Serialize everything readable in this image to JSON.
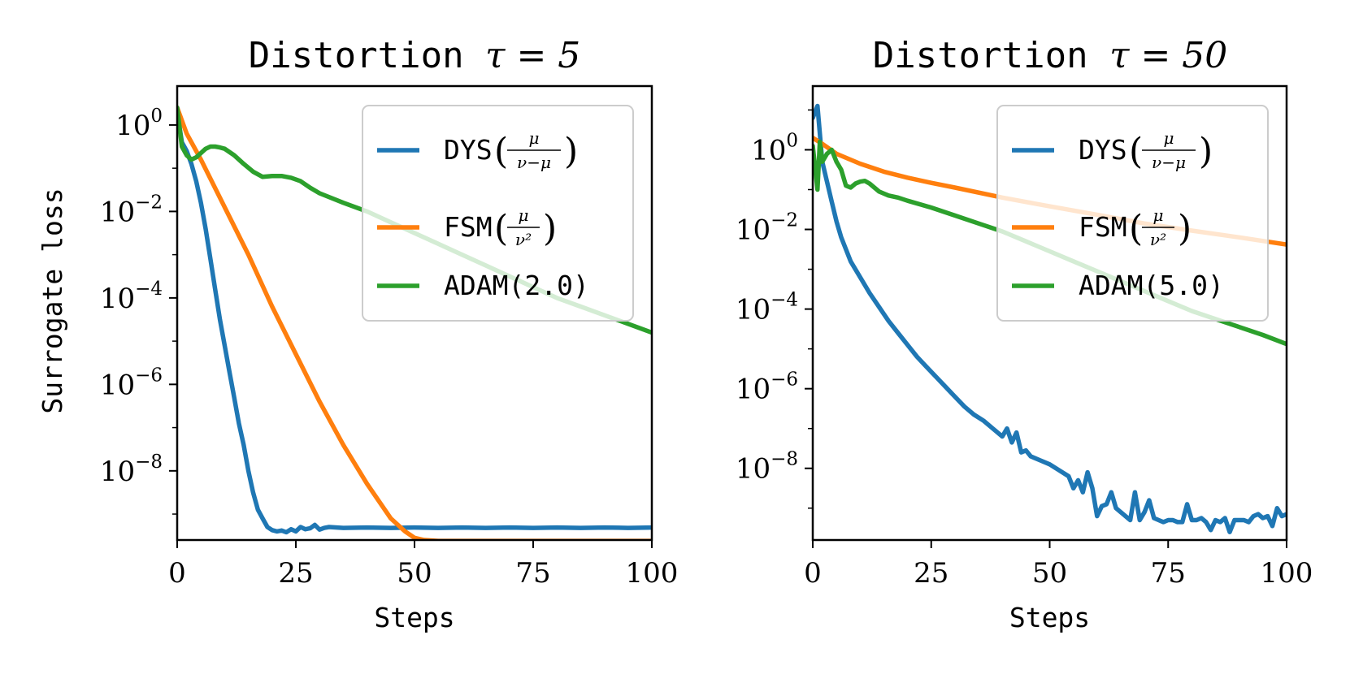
{
  "chart_data": [
    {
      "type": "line",
      "title": "Distortion",
      "title_math": "τ = 5",
      "xlabel": "Steps",
      "ylabel": "Surrogate loss",
      "xlim": [
        0,
        100
      ],
      "ylim_log10": [
        -9.6,
        0.9
      ],
      "yscale": "log",
      "x_ticks": [
        "0",
        "25",
        "50",
        "75",
        "100"
      ],
      "y_ticks": [
        {
          "base": "10",
          "exp": "0"
        },
        {
          "base": "10",
          "exp": "−2"
        },
        {
          "base": "10",
          "exp": "−4"
        },
        {
          "base": "10",
          "exp": "−6"
        },
        {
          "base": "10",
          "exp": "−8"
        }
      ],
      "legend_position": "upper right",
      "legend": [
        {
          "name": "DYS",
          "math": "μ / (ν−μ)",
          "color": "#1f77b4"
        },
        {
          "name": "FSM",
          "math": "μ / ν²",
          "color": "#ff7f0e"
        },
        {
          "name": "ADAM(2.0)",
          "math": "",
          "color": "#2ca02c"
        }
      ],
      "series": [
        {
          "name": "DYS",
          "color": "#1f77b4",
          "x": [
            0,
            1,
            2,
            3,
            4,
            5,
            6,
            7,
            8,
            9,
            10,
            11,
            12,
            13,
            14,
            15,
            16,
            17,
            18,
            19,
            20,
            21,
            22,
            23,
            24,
            25,
            26,
            27,
            28,
            29,
            30,
            31,
            32,
            35,
            40,
            45,
            50,
            55,
            60,
            65,
            70,
            75,
            80,
            85,
            90,
            95,
            100
          ],
          "log10_y": [
            0.3,
            -0.4,
            -0.6,
            -0.9,
            -1.3,
            -1.8,
            -2.4,
            -3.1,
            -3.8,
            -4.5,
            -5.1,
            -5.7,
            -6.3,
            -6.9,
            -7.4,
            -8.0,
            -8.5,
            -8.9,
            -9.1,
            -9.3,
            -9.37,
            -9.4,
            -9.38,
            -9.42,
            -9.35,
            -9.4,
            -9.3,
            -9.35,
            -9.33,
            -9.25,
            -9.36,
            -9.32,
            -9.3,
            -9.32,
            -9.31,
            -9.32,
            -9.31,
            -9.32,
            -9.31,
            -9.32,
            -9.31,
            -9.32,
            -9.31,
            -9.32,
            -9.31,
            -9.32,
            -9.31
          ]
        },
        {
          "name": "FSM",
          "color": "#ff7f0e",
          "x": [
            0,
            2,
            5,
            10,
            15,
            20,
            25,
            30,
            35,
            40,
            45,
            48,
            50,
            52,
            55,
            60,
            70,
            80,
            90,
            100
          ],
          "log10_y": [
            0.4,
            -0.2,
            -0.8,
            -1.9,
            -3.0,
            -4.2,
            -5.3,
            -6.4,
            -7.4,
            -8.3,
            -9.1,
            -9.4,
            -9.55,
            -9.6,
            -9.62,
            -9.62,
            -9.62,
            -9.62,
            -9.62,
            -9.62
          ]
        },
        {
          "name": "ADAM(2.0)",
          "color": "#2ca02c",
          "x": [
            0,
            1,
            2,
            3,
            4,
            5,
            6,
            7,
            8,
            9,
            10,
            12,
            14,
            16,
            18,
            20,
            22,
            24,
            26,
            28,
            30,
            35,
            40,
            45,
            50,
            55,
            60,
            65,
            70,
            75,
            80,
            85,
            90,
            95,
            100
          ],
          "log10_y": [
            0.4,
            -0.5,
            -0.7,
            -0.8,
            -0.75,
            -0.65,
            -0.55,
            -0.5,
            -0.5,
            -0.52,
            -0.55,
            -0.7,
            -0.9,
            -1.08,
            -1.2,
            -1.18,
            -1.18,
            -1.22,
            -1.3,
            -1.45,
            -1.58,
            -1.8,
            -2.0,
            -2.25,
            -2.5,
            -2.75,
            -3.0,
            -3.25,
            -3.5,
            -3.75,
            -4.0,
            -4.2,
            -4.4,
            -4.6,
            -4.8
          ]
        }
      ]
    },
    {
      "type": "line",
      "title": "Distortion",
      "title_math": "τ = 50",
      "xlabel": "Steps",
      "ylabel": "",
      "xlim": [
        0,
        100
      ],
      "ylim_log10": [
        -9.8,
        1.6
      ],
      "yscale": "log",
      "x_ticks": [
        "0",
        "25",
        "50",
        "75",
        "100"
      ],
      "y_ticks": [
        {
          "base": "10",
          "exp": "0"
        },
        {
          "base": "10",
          "exp": "−2"
        },
        {
          "base": "10",
          "exp": "−4"
        },
        {
          "base": "10",
          "exp": "−6"
        },
        {
          "base": "10",
          "exp": "−8"
        }
      ],
      "legend_position": "upper right",
      "legend": [
        {
          "name": "DYS",
          "math": "μ / (ν−μ)",
          "color": "#1f77b4"
        },
        {
          "name": "FSM",
          "math": "μ / ν²",
          "color": "#ff7f0e"
        },
        {
          "name": "ADAM(5.0)",
          "math": "",
          "color": "#2ca02c"
        }
      ],
      "series": [
        {
          "name": "DYS",
          "color": "#1f77b4",
          "x": [
            0,
            1,
            2,
            3,
            4,
            5,
            6,
            7,
            8,
            10,
            12,
            14,
            16,
            18,
            20,
            22,
            24,
            26,
            28,
            30,
            32,
            34,
            36,
            38,
            40,
            41,
            42,
            43,
            44,
            45,
            46,
            48,
            50,
            52,
            54,
            55,
            56,
            57,
            58,
            59,
            60,
            61,
            62,
            63,
            64,
            65,
            66,
            67,
            68,
            69,
            70,
            71,
            72,
            73,
            74,
            75,
            76,
            77,
            78,
            79,
            80,
            81,
            82,
            83,
            84,
            85,
            86,
            87,
            88,
            89,
            90,
            91,
            92,
            93,
            94,
            95,
            96,
            97,
            98,
            99,
            100
          ],
          "log10_y": [
            0.8,
            1.1,
            -0.3,
            -0.8,
            -1.3,
            -1.8,
            -2.2,
            -2.5,
            -2.8,
            -3.2,
            -3.6,
            -3.95,
            -4.3,
            -4.6,
            -4.9,
            -5.2,
            -5.45,
            -5.7,
            -5.95,
            -6.2,
            -6.45,
            -6.65,
            -6.8,
            -7.0,
            -7.2,
            -7.0,
            -7.35,
            -7.1,
            -7.6,
            -7.55,
            -7.7,
            -7.8,
            -7.9,
            -8.05,
            -8.2,
            -8.5,
            -8.3,
            -8.6,
            -8.1,
            -8.5,
            -9.2,
            -8.95,
            -8.9,
            -8.6,
            -9.0,
            -9.1,
            -9.2,
            -9.3,
            -8.6,
            -9.3,
            -9.1,
            -8.8,
            -9.25,
            -9.3,
            -9.35,
            -9.3,
            -9.3,
            -9.35,
            -9.35,
            -8.9,
            -9.3,
            -9.3,
            -9.25,
            -9.35,
            -9.55,
            -9.3,
            -9.35,
            -9.25,
            -9.6,
            -9.3,
            -9.3,
            -9.3,
            -9.35,
            -9.2,
            -9.15,
            -9.25,
            -9.2,
            -9.45,
            -9.0,
            -9.2,
            -9.15
          ]
        },
        {
          "name": "FSM",
          "color": "#ff7f0e",
          "x": [
            0,
            2,
            5,
            10,
            15,
            20,
            25,
            30,
            40,
            50,
            60,
            70,
            80,
            90,
            100
          ],
          "log10_y": [
            0.3,
            0.15,
            -0.1,
            -0.35,
            -0.55,
            -0.7,
            -0.83,
            -0.95,
            -1.2,
            -1.42,
            -1.63,
            -1.85,
            -2.03,
            -2.2,
            -2.38
          ]
        },
        {
          "name": "ADAM(5.0)",
          "color": "#2ca02c",
          "x": [
            0,
            1,
            1.5,
            2,
            3,
            4,
            5,
            6,
            7,
            8,
            9,
            10,
            11,
            12,
            13,
            14,
            15,
            16,
            18,
            20,
            25,
            30,
            35,
            40,
            45,
            50,
            55,
            60,
            65,
            70,
            75,
            80,
            85,
            90,
            95,
            100
          ],
          "log10_y": [
            0.1,
            -1.0,
            0.2,
            -0.3,
            -0.1,
            0.0,
            -0.3,
            -0.5,
            -0.9,
            -0.95,
            -0.85,
            -0.8,
            -0.78,
            -0.85,
            -0.95,
            -1.05,
            -1.1,
            -1.15,
            -1.2,
            -1.28,
            -1.45,
            -1.65,
            -1.85,
            -2.05,
            -2.3,
            -2.55,
            -2.8,
            -3.05,
            -3.3,
            -3.55,
            -3.8,
            -4.05,
            -4.25,
            -4.45,
            -4.65,
            -4.88
          ]
        }
      ]
    }
  ]
}
